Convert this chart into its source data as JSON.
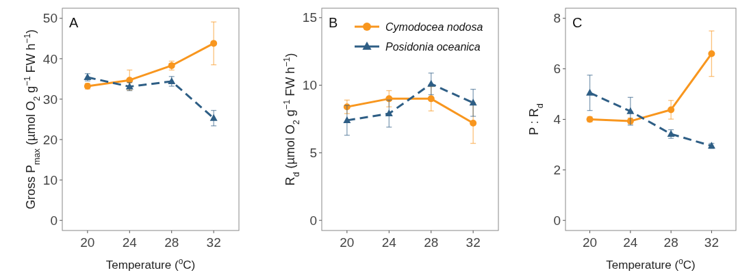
{
  "chart_data": [
    {
      "type": "line",
      "title": "A",
      "xlabel": "Temperature ($^{o}$C)",
      "ylabel": "Gross P$_{max}$ (µmol O$_{2}$ g$^{−1}$ FW h$^{−1}$)",
      "categories": [
        "20",
        "24",
        "28",
        "32"
      ],
      "ylim": [
        -2.5,
        52.5
      ],
      "yticks": [
        0,
        10,
        20,
        30,
        40,
        50
      ],
      "grid": false,
      "legend": false,
      "series": [
        {
          "color": "#f8961e",
          "marker": "circle",
          "line_style": "solid",
          "values": [
            33.2,
            34.7,
            38.3,
            43.8
          ],
          "errors": [
            0.7,
            2.5,
            1.1,
            5.3
          ]
        },
        {
          "color": "#2e5e85",
          "marker": "triangle",
          "line_style": "dashed",
          "values": [
            35.4,
            33.1,
            34.4,
            25.3
          ],
          "errors": [
            0.9,
            1.0,
            1.2,
            1.9
          ]
        }
      ]
    },
    {
      "type": "line",
      "title": "B",
      "ylabel": "R$_{d}$ (µmol O$_{2}$ g$^{−1}$ FW h$^{−1}$)",
      "categories": [
        "20",
        "24",
        "28",
        "32"
      ],
      "ylim": [
        -0.75,
        15.7
      ],
      "yticks": [
        0,
        5,
        10,
        15
      ],
      "grid": false,
      "legend": "top right",
      "series": [
        {
          "name": "Cymodocea nodosa",
          "color": "#f8961e",
          "marker": "circle",
          "line_style": "solid",
          "values": [
            8.4,
            9.0,
            9.0,
            7.2
          ],
          "errors": [
            0.5,
            0.6,
            0.9,
            1.5
          ]
        },
        {
          "name": "Posidonia oceanica",
          "color": "#2e5e85",
          "marker": "triangle",
          "line_style": "dashed",
          "values": [
            7.4,
            7.9,
            10.1,
            8.7
          ],
          "errors": [
            1.1,
            1.0,
            0.8,
            1.0
          ]
        }
      ]
    },
    {
      "type": "line",
      "title": "C",
      "xlabel": "Temperature ($^{o}$C)",
      "ylabel": "P : R$_{d}$",
      "categories": [
        "20",
        "24",
        "28",
        "32"
      ],
      "ylim": [
        -0.4,
        8.4
      ],
      "yticks": [
        0,
        2,
        4,
        6,
        8
      ],
      "grid": false,
      "legend": false,
      "series": [
        {
          "color": "#f8961e",
          "marker": "circle",
          "line_style": "solid",
          "values": [
            4.0,
            3.93,
            4.38,
            6.6
          ],
          "errors": [
            0.1,
            0.12,
            0.37,
            0.9
          ]
        },
        {
          "color": "#2e5e85",
          "marker": "triangle",
          "line_style": "dashed",
          "values": [
            5.05,
            4.32,
            3.42,
            2.95
          ],
          "errors": [
            0.7,
            0.55,
            0.17,
            0.1
          ]
        }
      ]
    }
  ]
}
